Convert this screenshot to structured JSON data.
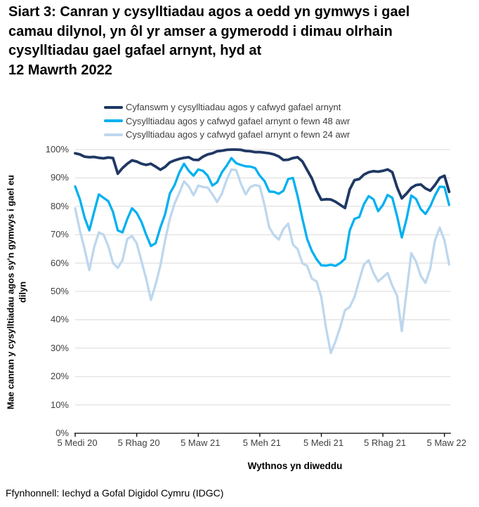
{
  "page": {
    "title": "Siart 3: Canran y cysylltiadau agos a oedd yn gymwys i gael camau dilynol, yn ôl yr amser a gymerodd i dimau olrhain cysylltiadau gael gafael arnynt, hyd at\n12 Mawrth 2022",
    "source": "Ffynhonnell: Iechyd a Gofal Digidol Cymru (IDGC)"
  },
  "chart_data": {
    "type": "line",
    "title": "Siart 3: Canran y cysylltiadau agos a oedd yn gymwys i gael camau dilynol, yn ôl yr amser a gymerodd i dimau olrhain cysylltiadau gael gafael arnynt, hyd at 12 Mawrth 2022",
    "xlabel": "Wythnos yn diweddu",
    "ylabel": "Mae canran y cysylltiadau agos sy'n gymwys i gael eu dilyn",
    "ylim": [
      0,
      100
    ],
    "grid": "horizontal",
    "legend_position": "top",
    "n_points": 80,
    "x_unit": "weeks (wythnosol)",
    "y_tick_labels": [
      "0%",
      "10%",
      "20%",
      "30%",
      "40%",
      "50%",
      "60%",
      "70%",
      "80%",
      "90%",
      "100%"
    ],
    "x_tick_labels": [
      "5 Medi 20",
      "5 Rhag 20",
      "5 Maw 21",
      "5 Meh 21",
      "5 Medi 21",
      "5 Rhag 21",
      "5 Maw 22"
    ],
    "x_tick_weeks": [
      0,
      13,
      26,
      39,
      52,
      65,
      78
    ],
    "grid_color": "#d9d9d9",
    "axis_color": "#000000",
    "tick_text_color": "#404040",
    "series": [
      {
        "name": "Cyfanswm y cysylltiadau agos y cafwyd gafael arnynt",
        "color": "#1f3864",
        "values": [
          98.7,
          98.3,
          97.5,
          97.3,
          97.4,
          97.1,
          96.9,
          97.2,
          97.0,
          91.5,
          93.5,
          95.0,
          96.2,
          95.8,
          95.0,
          94.6,
          95.0,
          94.0,
          92.9,
          93.9,
          95.5,
          96.2,
          96.7,
          97.1,
          97.3,
          96.4,
          96.3,
          97.5,
          98.3,
          98.7,
          99.4,
          99.6,
          99.9,
          100,
          100,
          99.9,
          99.5,
          99.4,
          99.1,
          99.1,
          98.9,
          98.7,
          98.3,
          97.6,
          96.3,
          96.4,
          97.0,
          97.3,
          95.8,
          92.8,
          89.8,
          85.5,
          82.3,
          82.5,
          82.4,
          81.6,
          80.5,
          79.4,
          86.0,
          89.2,
          89.6,
          91.2,
          92.0,
          92.4,
          92.2,
          92.5,
          93.0,
          92.0,
          86.7,
          82.8,
          84.5,
          86.5,
          87.5,
          87.7,
          86.3,
          85.5,
          87.5,
          90.0,
          90.8,
          85.1
        ]
      },
      {
        "name": "Cysylltiadau agos y cafwyd gafael arnynt o fewn 48 awr",
        "color": "#00b0f0",
        "values": [
          87.0,
          82.5,
          76.0,
          71.5,
          78.0,
          84.2,
          83.0,
          81.8,
          78.0,
          71.5,
          70.8,
          75.5,
          79.3,
          77.7,
          74.5,
          70.0,
          66.0,
          67.0,
          72.5,
          77.2,
          84.5,
          87.5,
          91.9,
          95.0,
          92.5,
          90.8,
          93.0,
          92.5,
          90.8,
          87.3,
          88.5,
          92.0,
          94.3,
          97.0,
          95.2,
          94.6,
          94.1,
          94.0,
          93.5,
          90.8,
          88.9,
          85.2,
          85.1,
          84.4,
          85.5,
          89.6,
          90.0,
          83.5,
          75.6,
          68.5,
          64.2,
          61.3,
          59.2,
          59.1,
          59.4,
          59.0,
          60.0,
          61.5,
          71.5,
          75.6,
          76.2,
          80.8,
          83.6,
          82.5,
          78.3,
          80.5,
          84.0,
          83.0,
          76.5,
          69.0,
          75.6,
          83.8,
          82.6,
          79.0,
          77.3,
          80.0,
          83.8,
          86.9,
          86.8,
          80.5
        ]
      },
      {
        "name": "Cysylltiadau agos y cafwyd gafael arnynt o fewn 24 awr",
        "color": "#bdd7ee",
        "values": [
          79.3,
          71.5,
          64.9,
          57.5,
          65.5,
          70.8,
          70.0,
          66.0,
          60.0,
          58.3,
          61.0,
          68.5,
          69.5,
          67.0,
          60.7,
          54.5,
          47.0,
          52.5,
          59.0,
          68.0,
          75.6,
          81.0,
          84.7,
          88.8,
          87.0,
          83.9,
          87.3,
          86.8,
          86.6,
          84.2,
          81.5,
          84.5,
          89.3,
          93.0,
          92.8,
          88.0,
          84.2,
          86.8,
          87.5,
          87.1,
          80.5,
          72.5,
          69.8,
          68.3,
          72.0,
          73.9,
          66.5,
          64.9,
          59.9,
          59.0,
          54.5,
          53.5,
          48.0,
          37.0,
          28.3,
          32.5,
          37.5,
          43.4,
          44.5,
          48.0,
          54.0,
          59.5,
          61.0,
          56.5,
          53.5,
          55.0,
          56.5,
          52.0,
          48.5,
          36.0,
          50.0,
          63.5,
          60.5,
          55.5,
          53.0,
          58.0,
          68.0,
          72.5,
          68.0,
          59.5
        ]
      }
    ]
  }
}
